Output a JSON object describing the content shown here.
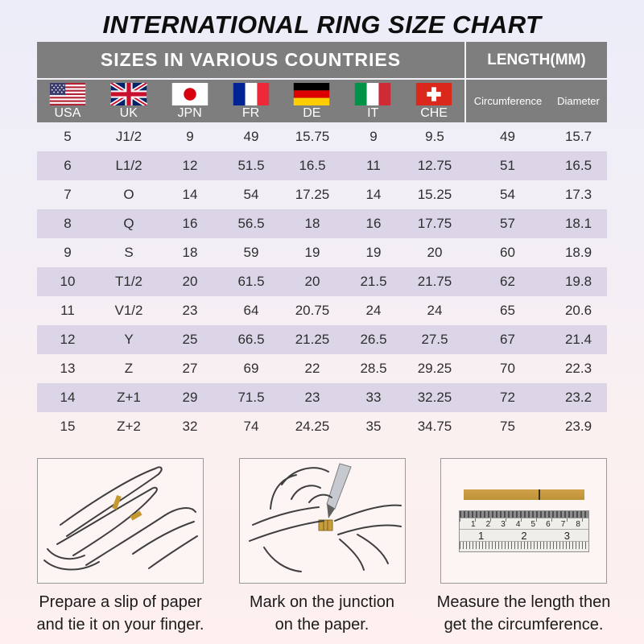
{
  "title": "INTERNATIONAL RING SIZE CHART",
  "chart_data": {
    "type": "table",
    "title": "INTERNATIONAL RING SIZE CHART",
    "section_headers": {
      "left": "SIZES IN VARIOUS COUNTRIES",
      "right": "LENGTH(MM)"
    },
    "columns": [
      "USA",
      "UK",
      "JPN",
      "FR",
      "DE",
      "IT",
      "CHE",
      "Circumference",
      "Diameter"
    ],
    "rows": [
      [
        "5",
        "J1/2",
        "9",
        "49",
        "15.75",
        "9",
        "9.5",
        "49",
        "15.7"
      ],
      [
        "6",
        "L1/2",
        "12",
        "51.5",
        "16.5",
        "11",
        "12.75",
        "51",
        "16.5"
      ],
      [
        "7",
        "O",
        "14",
        "54",
        "17.25",
        "14",
        "15.25",
        "54",
        "17.3"
      ],
      [
        "8",
        "Q",
        "16",
        "56.5",
        "18",
        "16",
        "17.75",
        "57",
        "18.1"
      ],
      [
        "9",
        "S",
        "18",
        "59",
        "19",
        "19",
        "20",
        "60",
        "18.9"
      ],
      [
        "10",
        "T1/2",
        "20",
        "61.5",
        "20",
        "21.5",
        "21.75",
        "62",
        "19.8"
      ],
      [
        "11",
        "V1/2",
        "23",
        "64",
        "20.75",
        "24",
        "24",
        "65",
        "20.6"
      ],
      [
        "12",
        "Y",
        "25",
        "66.5",
        "21.25",
        "26.5",
        "27.5",
        "67",
        "21.4"
      ],
      [
        "13",
        "Z",
        "27",
        "69",
        "22",
        "28.5",
        "29.25",
        "70",
        "22.3"
      ],
      [
        "14",
        "Z+1",
        "29",
        "71.5",
        "23",
        "33",
        "32.25",
        "72",
        "23.2"
      ],
      [
        "15",
        "Z+2",
        "32",
        "74",
        "24.25",
        "35",
        "34.75",
        "75",
        "23.9"
      ]
    ]
  },
  "flags": [
    {
      "code": "USA",
      "icon": "usa-flag-icon"
    },
    {
      "code": "UK",
      "icon": "uk-flag-icon"
    },
    {
      "code": "JPN",
      "icon": "japan-flag-icon"
    },
    {
      "code": "FR",
      "icon": "france-flag-icon"
    },
    {
      "code": "DE",
      "icon": "germany-flag-icon"
    },
    {
      "code": "IT",
      "icon": "italy-flag-icon"
    },
    {
      "code": "CHE",
      "icon": "switzerland-flag-icon"
    }
  ],
  "instructions": [
    {
      "illustration": "hand-with-paper-slip",
      "caption_line1": "Prepare a slip of paper",
      "caption_line2": "and tie it on your finger."
    },
    {
      "illustration": "hands-marking-with-pen",
      "caption_line1": "Mark on the junction",
      "caption_line2": "on the paper."
    },
    {
      "illustration": "ruler-measuring-strip",
      "caption_line1": "Measure the length then",
      "caption_line2": "get the circumference.",
      "ruler": {
        "top_scale": [
          "1",
          "2",
          "3",
          "4",
          "5",
          "6",
          "7",
          "8"
        ],
        "bottom_scale": [
          "1",
          "2",
          "3"
        ]
      }
    }
  ],
  "colors": {
    "background_top": "#ecedf9",
    "background_bottom": "#fdf0ee",
    "header_gray": "#7e7e7e",
    "row_shade": "#dbd5e7",
    "paper_gold": "#c79d3e"
  }
}
